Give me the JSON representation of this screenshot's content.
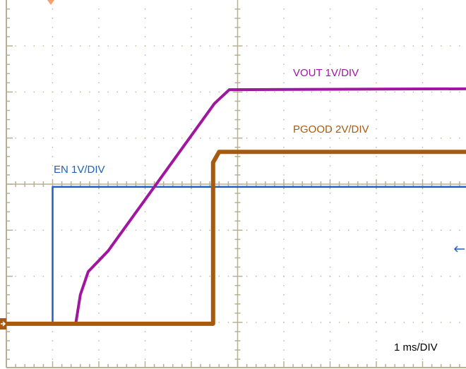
{
  "chart_data": {
    "type": "line",
    "title": "",
    "xlabel": "",
    "ylabel": "",
    "timebase_label": "1 ms/DIV",
    "x_units": "ms from left edge of screen (1 ms/div)",
    "y_units": "divisions from screen center",
    "xlim": [
      0,
      10
    ],
    "ylim": [
      -4,
      4
    ],
    "grid": true,
    "series": [
      {
        "name": "EN 1V/DIV",
        "color": "#1f5fbf",
        "x": [
          0,
          1.0,
          1.0,
          10
        ],
        "y": [
          -3.03,
          -3.03,
          -0.06,
          -0.06
        ]
      },
      {
        "name": "VOUT 1V/DIV",
        "color": "#a0169f",
        "x": [
          0,
          1.5,
          1.6,
          1.77,
          2.2,
          4.5,
          4.82,
          10
        ],
        "y": [
          -3.03,
          -3.03,
          -2.4,
          -1.9,
          -1.45,
          1.75,
          2.05,
          2.07
        ]
      },
      {
        "name": "PGOOD 2V/DIV",
        "color": "#a65a10",
        "x": [
          0,
          4.47,
          4.47,
          4.6,
          10
        ],
        "y": [
          -3.03,
          -3.03,
          0.47,
          0.7,
          0.7
        ]
      }
    ],
    "colors": {
      "grid": "#b8b094",
      "trigger_marker": "#f5a070",
      "ground_marker": "#a65a10"
    }
  }
}
